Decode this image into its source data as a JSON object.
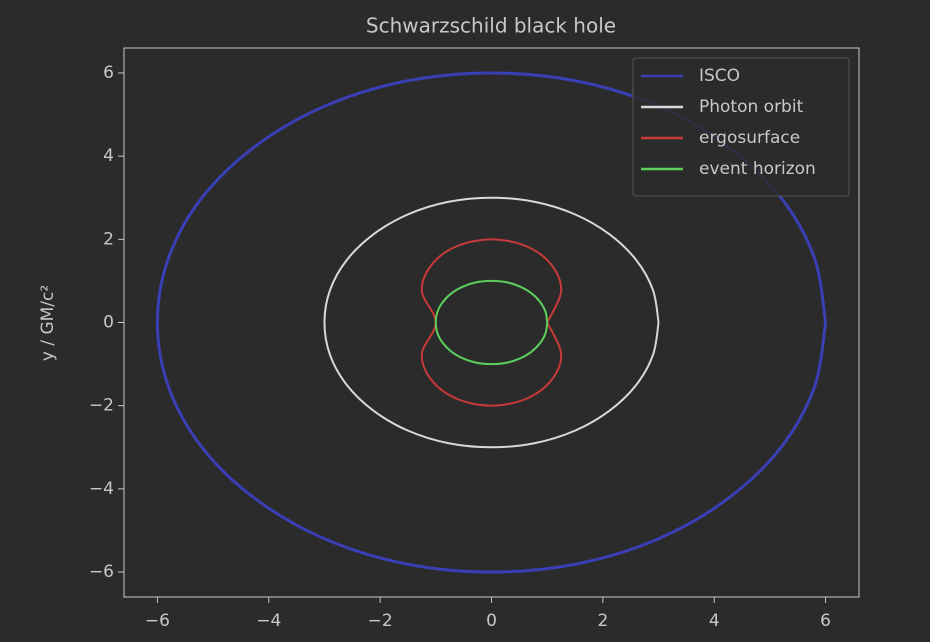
{
  "chart_data": {
    "type": "line",
    "title": "Schwarzschild black hole",
    "ylabel": "y  /  GM/c²",
    "xlim": [
      -6.6,
      6.6
    ],
    "ylim": [
      -6.6,
      6.6
    ],
    "xticks": [
      {
        "value": -6,
        "label": "−6"
      },
      {
        "value": -4,
        "label": "−4"
      },
      {
        "value": -2,
        "label": "−2"
      },
      0,
      2,
      4,
      6
    ],
    "yticks": [
      {
        "value": -6,
        "label": "−6"
      },
      {
        "value": -4,
        "label": "−4"
      },
      {
        "value": -2,
        "label": "−2"
      },
      0,
      2,
      4,
      6
    ],
    "legend": "upper right",
    "grid": false,
    "series": [
      {
        "name": "ISCO",
        "color": "#3b3fb5",
        "x": [
          6,
          5.8,
          5.2,
          4.24,
          3,
          1.55,
          0,
          -1.55,
          -3,
          -4.24,
          -5.2,
          -5.8,
          -6,
          -5.8,
          -5.2,
          -4.24,
          -3,
          -1.55,
          0,
          1.55,
          3,
          4.24,
          5.2,
          5.8,
          6
        ],
        "values": [
          0,
          1.55,
          3,
          4.24,
          5.2,
          5.8,
          6,
          5.8,
          5.2,
          4.24,
          3,
          1.55,
          0,
          -1.55,
          -3,
          -4.24,
          -5.2,
          -5.8,
          -6,
          -5.8,
          -5.2,
          -4.24,
          -3,
          -1.55,
          0
        ]
      },
      {
        "name": "Photon orbit",
        "color": "#d9d9d9",
        "x": [
          3,
          2.9,
          2.6,
          2.12,
          1.5,
          0.78,
          0,
          -0.78,
          -1.5,
          -2.12,
          -2.6,
          -2.9,
          -3,
          -2.9,
          -2.6,
          -2.12,
          -1.5,
          -0.78,
          0,
          0.78,
          1.5,
          2.12,
          2.6,
          2.9,
          3
        ],
        "values": [
          0,
          0.78,
          1.5,
          2.12,
          2.6,
          2.9,
          3,
          2.9,
          2.6,
          2.12,
          1.5,
          0.78,
          0,
          -0.78,
          -1.5,
          -2.12,
          -2.6,
          -2.9,
          -3,
          -2.9,
          -2.6,
          -2.12,
          -1.5,
          -0.78,
          0
        ]
      },
      {
        "name": "ergosurface",
        "color": "#c83a3a",
        "x": [
          1,
          1.25,
          1.08,
          0.63,
          0,
          -0.63,
          -1.08,
          -1.25,
          -1,
          -1.25,
          -1.08,
          -0.63,
          0,
          0.63,
          1.08,
          1.25,
          1
        ],
        "values": [
          0,
          0.75,
          1.38,
          1.83,
          2,
          1.83,
          1.38,
          0.75,
          0,
          -0.75,
          -1.38,
          -1.83,
          -2,
          -1.83,
          -1.38,
          -0.75,
          0
        ]
      },
      {
        "name": "event horizon",
        "color": "#5ccf5c",
        "x": [
          1,
          0.97,
          0.87,
          0.71,
          0.5,
          0.26,
          0,
          -0.26,
          -0.5,
          -0.71,
          -0.87,
          -0.97,
          -1,
          -0.97,
          -0.87,
          -0.71,
          -0.5,
          -0.26,
          0,
          0.26,
          0.5,
          0.71,
          0.87,
          0.97,
          1
        ],
        "values": [
          0,
          0.26,
          0.5,
          0.71,
          0.87,
          0.97,
          1,
          0.97,
          0.87,
          0.71,
          0.5,
          0.26,
          0,
          -0.26,
          -0.5,
          -0.71,
          -0.87,
          -0.97,
          -1,
          -0.97,
          -0.87,
          -0.71,
          -0.5,
          -0.26,
          0
        ]
      }
    ]
  }
}
